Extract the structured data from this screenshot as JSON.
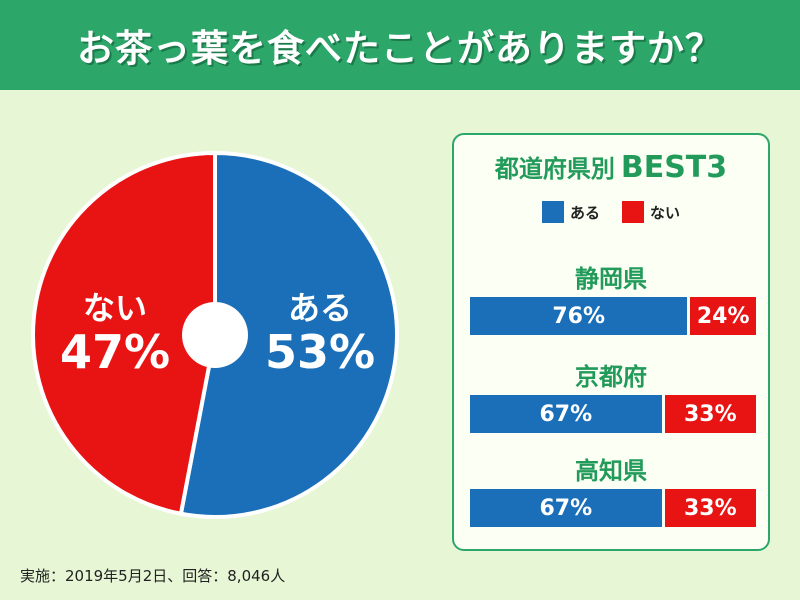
{
  "header": {
    "title": "お茶っ葉を食べたことがありますか？"
  },
  "colors": {
    "yes": "#1a6fb8",
    "no": "#e81414",
    "accent": "#2da66a"
  },
  "chart_data": [
    {
      "type": "pie",
      "categories": [
        "ある",
        "ない"
      ],
      "values": [
        53,
        47
      ],
      "value_labels": [
        "53%",
        "47%"
      ],
      "colors": [
        "#1a6fb8",
        "#e81414"
      ],
      "donut_hole": true
    },
    {
      "type": "bar",
      "title": "都道府県別 BEST3",
      "title_jp": "都道府県別",
      "title_best": "BEST3",
      "stacked": true,
      "orientation": "horizontal",
      "categories": [
        "静岡県",
        "京都府",
        "高知県"
      ],
      "series": [
        {
          "name": "ある",
          "values": [
            76,
            67,
            67
          ],
          "labels": [
            "76%",
            "67%",
            "67%"
          ]
        },
        {
          "name": "ない",
          "values": [
            24,
            33,
            33
          ],
          "labels": [
            "24%",
            "33%",
            "33%"
          ]
        }
      ],
      "legend": [
        "ある",
        "ない"
      ]
    }
  ],
  "footnote": "実施：2019年5月2日、回答：8,046人"
}
